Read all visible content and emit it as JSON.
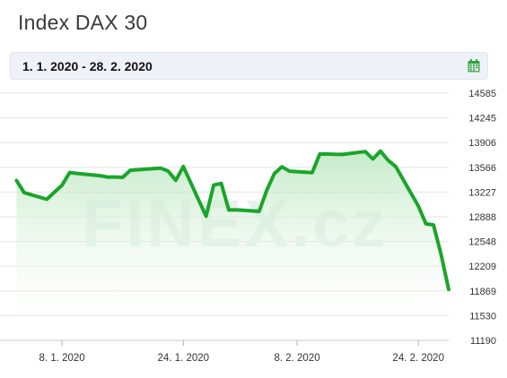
{
  "title": "Index DAX 30",
  "date_range": "1. 1. 2020 - 28. 2. 2020",
  "icons": {
    "calendar": "calendar-icon"
  },
  "colors": {
    "line": "#1aa52a",
    "fill_top": "#bfe8c3",
    "grid": "#e3e3e3",
    "watermark": "#e7f1ee",
    "date_bar_bg": "#eef2f8"
  },
  "watermark_text": "FINEX.cz",
  "chart_data": {
    "type": "area",
    "title": "Index DAX 30",
    "xlabel": "",
    "ylabel": "",
    "ylim": [
      11190,
      14585
    ],
    "y_ticks": [
      11190,
      11530,
      11869,
      12209,
      12548,
      12888,
      13227,
      13566,
      13906,
      14245,
      14585
    ],
    "x_ticks": [
      {
        "label": "8. 1. 2020",
        "day": 7
      },
      {
        "label": "24. 1. 2020",
        "day": 23
      },
      {
        "label": "8. 2. 2020",
        "day": 38
      },
      {
        "label": "24. 2. 2020",
        "day": 54
      }
    ],
    "xlim_days": [
      0,
      58
    ],
    "grid": true,
    "legend": "none",
    "series": [
      {
        "dates": [
          "2. 1.",
          "3. 1.",
          "6. 1.",
          "7. 1.",
          "8. 1.",
          "9. 1.",
          "10. 1.",
          "13. 1.",
          "14. 1.",
          "15. 1.",
          "16. 1.",
          "17. 1.",
          "20. 1.",
          "21. 1.",
          "22. 1.",
          "23. 1.",
          "24. 1.",
          "27. 1.",
          "28. 1.",
          "29. 1.",
          "30. 1.",
          "31. 1.",
          "3. 2.",
          "4. 2.",
          "5. 2.",
          "6. 2.",
          "7. 2.",
          "10. 2.",
          "11. 2.",
          "12. 2.",
          "13. 2.",
          "14. 2.",
          "17. 2.",
          "18. 2.",
          "19. 2.",
          "20. 2.",
          "21. 2.",
          "24. 2.",
          "25. 2.",
          "26. 2.",
          "27. 2.",
          "28. 2."
        ],
        "days": [
          1,
          2,
          5,
          6,
          7,
          8,
          9,
          12,
          13,
          14,
          15,
          16,
          19,
          20,
          21,
          22,
          23,
          26,
          27,
          28,
          29,
          30,
          33,
          34,
          35,
          36,
          37,
          40,
          41,
          42,
          43,
          44,
          47,
          48,
          49,
          50,
          51,
          54,
          55,
          56,
          57,
          58
        ],
        "values": [
          13385,
          13219,
          13127,
          13226,
          13320,
          13495,
          13483,
          13452,
          13432,
          13434,
          13429,
          13526,
          13548,
          13556,
          13515,
          13388,
          13577,
          12895,
          13323,
          13345,
          12981,
          12982,
          12961,
          13249,
          13479,
          13574,
          13514,
          13494,
          13750,
          13749,
          13745,
          13744,
          13783,
          13681,
          13789,
          13664,
          13579,
          13035,
          12790,
          12775,
          12367,
          11890
        ]
      }
    ]
  }
}
